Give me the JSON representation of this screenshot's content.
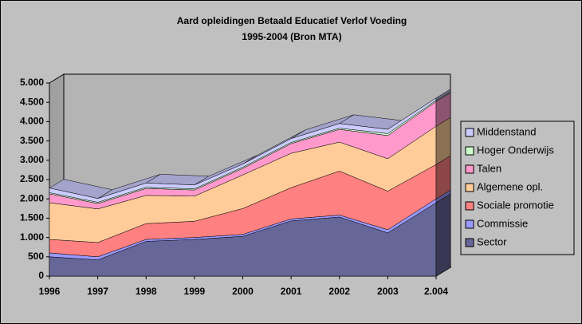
{
  "chart_data": {
    "type": "area3d",
    "title": "Aard opleidingen Betaald Educatief Verlof Voeding",
    "subtitle": "1995-2004 (Bron MTA)",
    "categories": [
      "1996",
      "1997",
      "1998",
      "1999",
      "2000",
      "2001",
      "2002",
      "2003",
      "2.004"
    ],
    "series": [
      {
        "name": "Sector",
        "color": "#666699",
        "values": [
          500,
          420,
          900,
          950,
          1030,
          1430,
          1530,
          1120,
          1900
        ]
      },
      {
        "name": "Commissie",
        "color": "#9999ff",
        "values": [
          100,
          80,
          50,
          50,
          50,
          50,
          50,
          80,
          100
        ]
      },
      {
        "name": "Sociale promotie",
        "color": "#ff8080",
        "values": [
          350,
          370,
          410,
          420,
          670,
          810,
          1140,
          1000,
          890
        ]
      },
      {
        "name": "Algemene opl.",
        "color": "#ffcc99",
        "values": [
          950,
          870,
          730,
          650,
          870,
          890,
          750,
          840,
          990
        ]
      },
      {
        "name": "Talen",
        "color": "#ff99cc",
        "values": [
          230,
          140,
          180,
          160,
          170,
          250,
          330,
          600,
          640
        ]
      },
      {
        "name": "Hoger Onderwijs",
        "color": "#ccffcc",
        "values": [
          30,
          30,
          30,
          30,
          30,
          30,
          30,
          50,
          30
        ]
      },
      {
        "name": "Middenstand",
        "color": "#ccccff",
        "values": [
          120,
          100,
          110,
          100,
          80,
          100,
          120,
          110,
          60
        ]
      }
    ],
    "ylim": [
      0,
      5000
    ],
    "yticks": [
      0,
      {
        "value": 500,
        "label": "500"
      },
      {
        "value": 1000,
        "label": "1.000"
      },
      {
        "value": 1500,
        "label": "1.500"
      },
      {
        "value": 2000,
        "label": "2.000"
      },
      {
        "value": 2500,
        "label": "2.500"
      },
      {
        "value": 3000,
        "label": "3.000"
      },
      {
        "value": 3500,
        "label": "3.500"
      },
      {
        "value": 4000,
        "label": "4.000"
      },
      {
        "value": 4500,
        "label": "4.500"
      },
      {
        "value": 5000,
        "label": "5.000"
      }
    ],
    "legend": "right"
  }
}
